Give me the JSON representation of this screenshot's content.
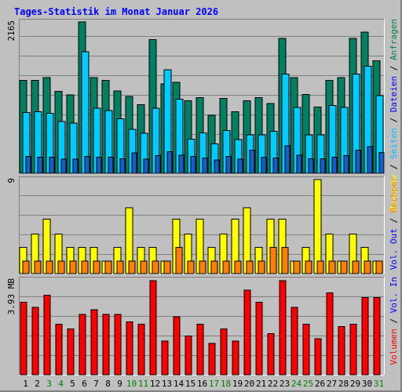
{
  "title": "Tages-Statistik im Monat Januar 2026",
  "legend": {
    "hits_panel": [
      {
        "text": "Anfragen",
        "color": "#008040"
      },
      {
        "text": " / ",
        "color": "#000000"
      },
      {
        "text": "Dateien",
        "color": "#0000ff"
      },
      {
        "text": " / ",
        "color": "#000000"
      },
      {
        "text": "Seiten",
        "color": "#00c0ff"
      },
      {
        "text": " / ",
        "color": "#000000"
      },
      {
        "text": "Besuche",
        "color": "#ffff00"
      }
    ],
    "visits_panel": [
      {
        "text": "Rechner",
        "color": "#ff8000"
      },
      {
        "text": " / ",
        "color": "#000000"
      },
      {
        "text": "Vol. Out",
        "color": "#0000ff"
      }
    ],
    "volume_panel": [
      {
        "text": "Vol. In",
        "color": "#0000ff"
      },
      {
        "text": " / ",
        "color": "#000000"
      },
      {
        "text": "Volumen",
        "color": "#ff0000"
      }
    ]
  },
  "chart_data": [
    {
      "type": "bar",
      "panel": "hits",
      "max_label": "2165",
      "ylim": [
        0,
        2165
      ],
      "categories": [
        "1",
        "2",
        "3",
        "4",
        "5",
        "6",
        "7",
        "8",
        "9",
        "10",
        "11",
        "12",
        "13",
        "14",
        "15",
        "16",
        "17",
        "18",
        "19",
        "20",
        "21",
        "22",
        "23",
        "24",
        "25",
        "26",
        "27",
        "28",
        "29",
        "30",
        "31"
      ],
      "weekend_days": [
        "3",
        "4",
        "10",
        "11",
        "17",
        "18",
        "24",
        "25",
        "31"
      ],
      "series": [
        {
          "name": "Anfragen",
          "color": "#008060",
          "values": [
            1330,
            1330,
            1370,
            1170,
            1120,
            2165,
            1370,
            1330,
            1180,
            1100,
            980,
            1910,
            1280,
            1300,
            1040,
            1080,
            830,
            1070,
            880,
            1040,
            1080,
            1000,
            1930,
            1370,
            1130,
            950,
            1330,
            1370,
            1930,
            2020,
            1610
          ]
        },
        {
          "name": "Dateien",
          "color": "#00ccff",
          "values": [
            870,
            880,
            860,
            740,
            720,
            1740,
            930,
            900,
            780,
            630,
            570,
            930,
            1480,
            1060,
            490,
            580,
            420,
            610,
            480,
            550,
            550,
            600,
            1420,
            940,
            550,
            550,
            970,
            940,
            1420,
            1530,
            1110
          ]
        },
        {
          "name": "Seiten",
          "color": "#1060c8",
          "values": [
            240,
            230,
            230,
            200,
            200,
            240,
            230,
            230,
            210,
            290,
            200,
            250,
            310,
            260,
            240,
            220,
            190,
            240,
            200,
            330,
            230,
            220,
            390,
            260,
            210,
            210,
            230,
            250,
            330,
            380,
            300
          ]
        }
      ]
    },
    {
      "type": "bar",
      "panel": "visits",
      "max_label": "9",
      "ylim": [
        0,
        9
      ],
      "categories": [
        "1",
        "2",
        "3",
        "4",
        "5",
        "6",
        "7",
        "8",
        "9",
        "10",
        "11",
        "12",
        "13",
        "14",
        "15",
        "16",
        "17",
        "18",
        "19",
        "20",
        "21",
        "22",
        "23",
        "24",
        "25",
        "26",
        "27",
        "28",
        "29",
        "30",
        "31"
      ],
      "series": [
        {
          "name": "Besuche",
          "color": "#ffff00",
          "values": [
            2.5,
            3.8,
            5.2,
            3.8,
            2.5,
            2.5,
            2.5,
            1.2,
            2.5,
            6.3,
            2.5,
            2.5,
            1.2,
            5.2,
            3.8,
            5.2,
            2.5,
            3.8,
            5.2,
            6.3,
            2.5,
            5.2,
            5.2,
            1.2,
            2.5,
            9,
            3.8,
            1.2,
            3.8,
            2.5,
            1.2
          ]
        },
        {
          "name": "Rechner",
          "color": "#ff8000",
          "values": [
            1.2,
            1.2,
            1.2,
            1.2,
            1.2,
            1.2,
            1.2,
            1.2,
            1.2,
            1.2,
            1.2,
            1.2,
            1.2,
            2.5,
            1.2,
            1.2,
            1.2,
            1.2,
            1.2,
            1.2,
            1.2,
            2.5,
            2.5,
            1.2,
            1.2,
            1.2,
            1.2,
            1.2,
            1.2,
            1.2,
            1.2
          ]
        }
      ]
    },
    {
      "type": "bar",
      "panel": "volume",
      "max_label": "3.93 MB",
      "ylim": [
        0,
        3.93
      ],
      "unit": "MB",
      "categories": [
        "1",
        "2",
        "3",
        "4",
        "5",
        "6",
        "7",
        "8",
        "9",
        "10",
        "11",
        "12",
        "13",
        "14",
        "15",
        "16",
        "17",
        "18",
        "19",
        "20",
        "21",
        "22",
        "23",
        "24",
        "25",
        "26",
        "27",
        "28",
        "29",
        "30",
        "31"
      ],
      "series": [
        {
          "name": "Volumen",
          "color": "#ff0000",
          "values": [
            3.0,
            2.8,
            3.3,
            2.1,
            1.9,
            2.5,
            2.7,
            2.5,
            2.5,
            2.2,
            2.1,
            3.9,
            1.4,
            2.4,
            1.6,
            2.1,
            1.3,
            1.9,
            1.4,
            3.5,
            3.0,
            1.7,
            3.9,
            2.8,
            2.1,
            1.5,
            3.4,
            2.0,
            2.1,
            3.2,
            3.2
          ]
        }
      ]
    }
  ]
}
